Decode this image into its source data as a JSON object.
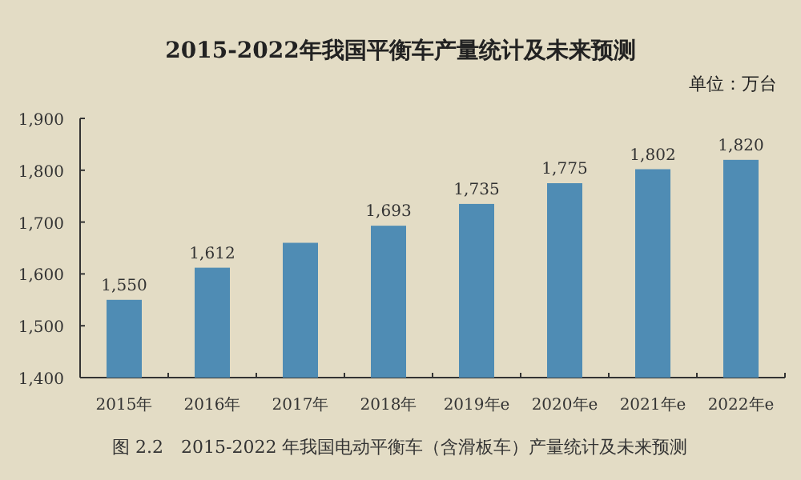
{
  "chart_data": {
    "type": "bar",
    "title": "2015-2022年我国平衡车产量统计及未来预测",
    "subtitle": "单位：万台",
    "categories": [
      "2015年",
      "2016年",
      "2017年",
      "2018年",
      "2019年e",
      "2020年e",
      "2021年e",
      "2022年e"
    ],
    "values": [
      1550,
      1612,
      1660,
      1693,
      1735,
      1775,
      1802,
      1820
    ],
    "value_labels": [
      "1,550",
      "1,612",
      null,
      "1,693",
      "1,735",
      "1,775",
      "1,802",
      "1,820"
    ],
    "color": "#4f8cb4",
    "ylim": [
      1400,
      1900
    ],
    "yticks": [
      {
        "value": 1400,
        "label": "1,400"
      },
      {
        "value": 1500,
        "label": "1,500"
      },
      {
        "value": 1600,
        "label": "1,600"
      },
      {
        "value": 1700,
        "label": "1,700"
      },
      {
        "value": 1800,
        "label": "1,800"
      },
      {
        "value": 1900,
        "label": "1,900"
      }
    ],
    "annotations": [
      "图 2.2　2015-2022 年我国电动平衡车（含滑板车）产量统计及未来预测"
    ]
  }
}
